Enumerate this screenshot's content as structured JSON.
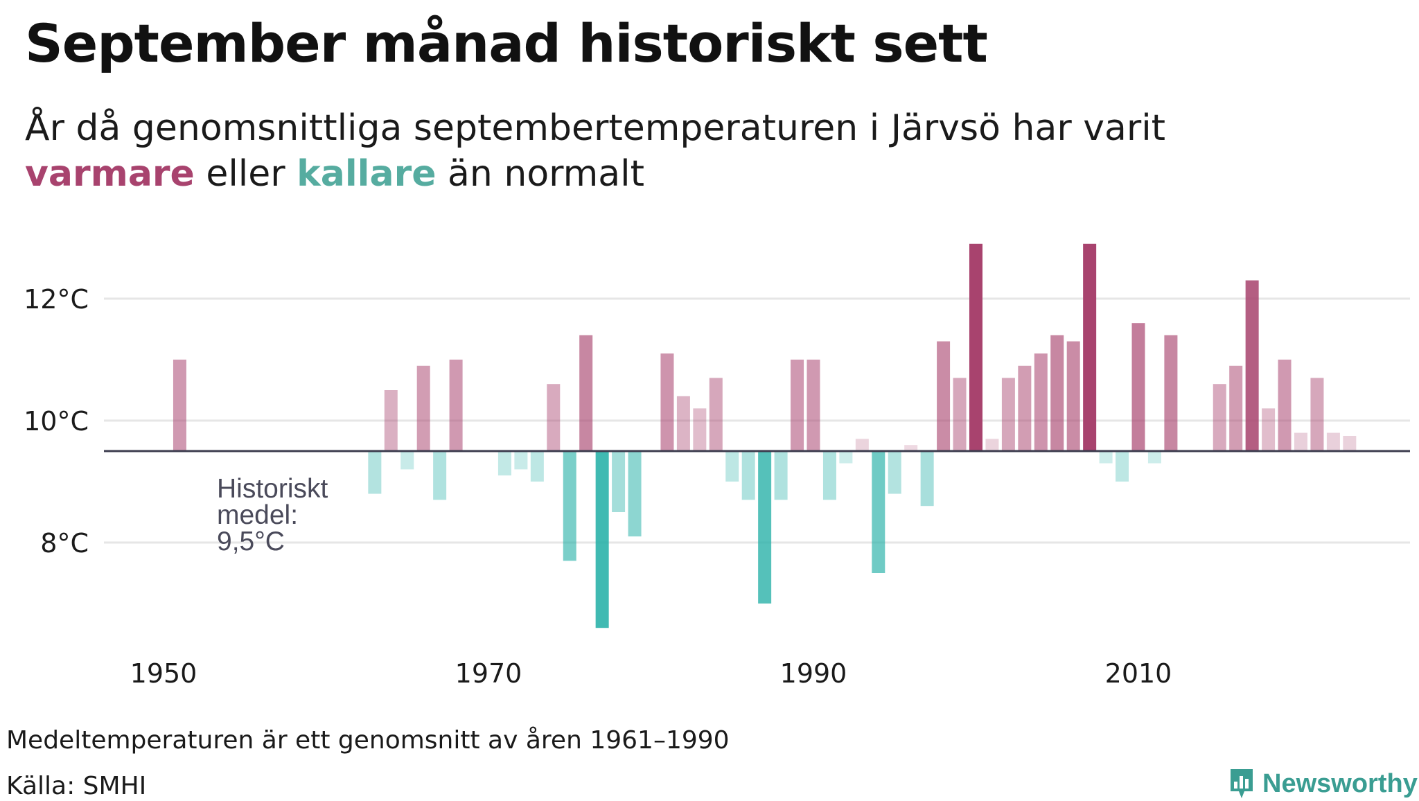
{
  "title": "September månad historiskt sett",
  "subtitle": {
    "part1": "År då genomsnittliga septembertemperaturen i Järvsö har varit ",
    "warm": "varmare",
    "part2": " eller ",
    "cold": "kallare",
    "part3": " än normalt"
  },
  "footnote": "Medeltemperaturen är ett genomsnitt av åren 1961–1990",
  "source": "Källa: SMHI",
  "logo": {
    "text": "Newsworthy",
    "icon": "newsworthy-logo-icon"
  },
  "colors": {
    "warm": "#a8436e",
    "cold": "#25b0a7",
    "baseline": "#3c3c4e",
    "grid": "#e6e6e6",
    "label": "#4a4a5a",
    "logo": "#3a9d92"
  },
  "chart_data": {
    "type": "bar",
    "title": "September månad historiskt sett",
    "baseline": 9.5,
    "baseline_label": [
      "Historiskt",
      "medel:",
      "9,5°C"
    ],
    "ylim": [
      6.5,
      13.2
    ],
    "xlim": [
      1949,
      2024
    ],
    "y_ticks": [
      {
        "value": 8,
        "label": "8°C"
      },
      {
        "value": 10,
        "label": "10°C"
      },
      {
        "value": 12,
        "label": "12°C"
      }
    ],
    "x_ticks": [
      {
        "value": 1950,
        "label": "1950"
      },
      {
        "value": 1970,
        "label": "1970"
      },
      {
        "value": 1990,
        "label": "1990"
      },
      {
        "value": 2010,
        "label": "2010"
      }
    ],
    "grid": true,
    "years": [
      1951,
      1963,
      1964,
      1965,
      1966,
      1967,
      1968,
      1971,
      1972,
      1973,
      1974,
      1975,
      1976,
      1977,
      1978,
      1979,
      1981,
      1982,
      1983,
      1984,
      1985,
      1986,
      1987,
      1988,
      1989,
      1990,
      1991,
      1992,
      1993,
      1994,
      1995,
      1996,
      1997,
      1998,
      1999,
      2000,
      2001,
      2002,
      2003,
      2004,
      2005,
      2006,
      2007,
      2008,
      2009,
      2010,
      2011,
      2012,
      2015,
      2016,
      2017,
      2018,
      2019,
      2020,
      2021,
      2022,
      2023
    ],
    "values": [
      11.0,
      8.8,
      10.5,
      9.2,
      10.9,
      8.7,
      11.0,
      9.1,
      9.2,
      9.0,
      10.6,
      7.7,
      11.4,
      6.6,
      8.5,
      8.1,
      11.1,
      10.4,
      10.2,
      10.7,
      9.0,
      8.7,
      7.0,
      8.7,
      11.0,
      11.0,
      8.7,
      9.3,
      9.7,
      7.5,
      8.8,
      9.6,
      8.6,
      11.3,
      10.7,
      12.9,
      9.7,
      10.7,
      10.9,
      11.1,
      11.4,
      11.3,
      12.9,
      9.3,
      9.0,
      11.6,
      9.3,
      11.4,
      10.6,
      10.9,
      12.3,
      10.2,
      11.0,
      9.8,
      10.7,
      9.8,
      9.75
    ]
  }
}
